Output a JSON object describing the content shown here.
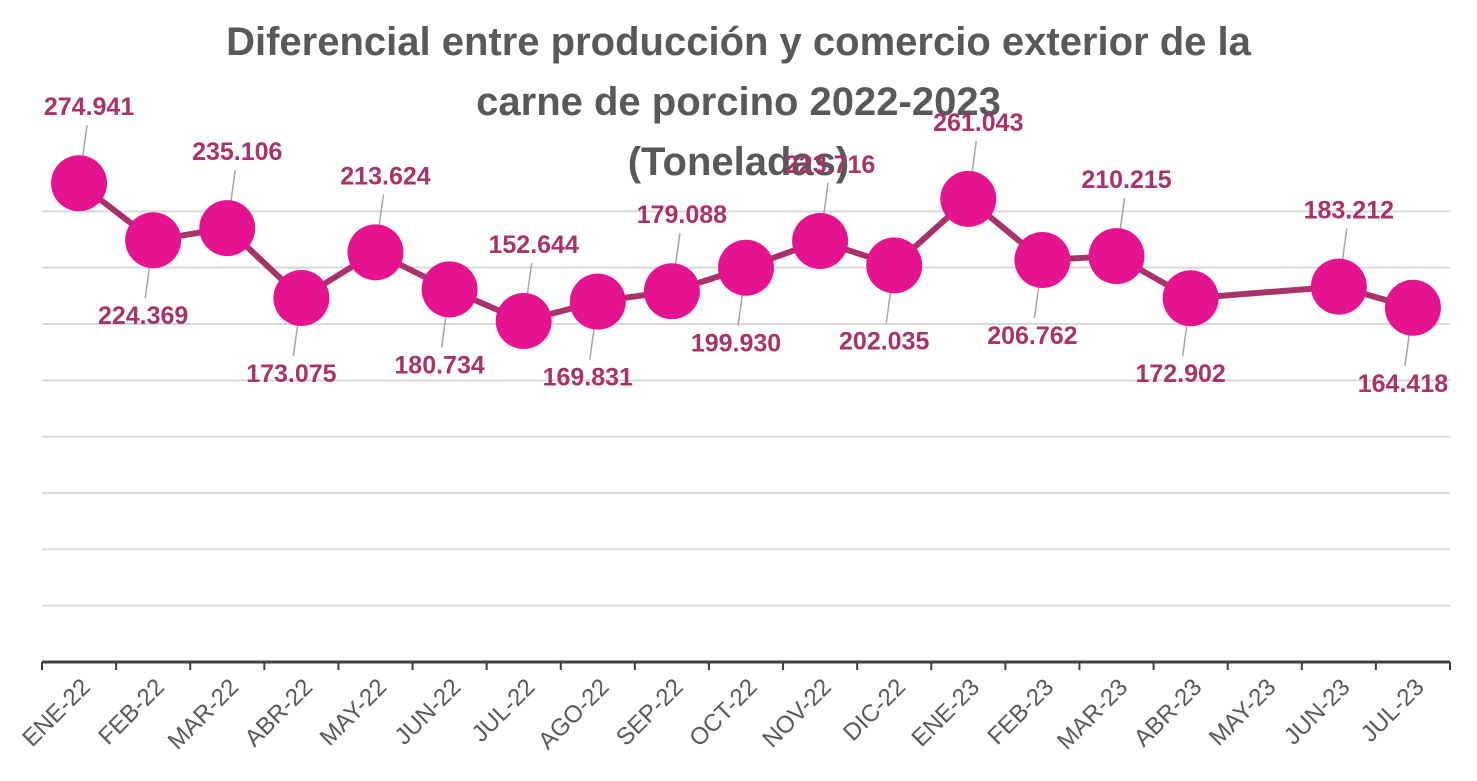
{
  "chart_data": {
    "type": "line",
    "title_lines": [
      "Diferencial entre producción y comercio exterior de la",
      "carne de porcino 2022-2023",
      "(Toneladas)"
    ],
    "categories": [
      "ENE-22",
      "FEB-22",
      "MAR-22",
      "ABR-22",
      "MAY-22",
      "JUN-22",
      "JUL-22",
      "AGO-22",
      "SEP-22",
      "OCT-22",
      "NOV-22",
      "DIC-22",
      "ENE-23",
      "FEB-23",
      "MAR-23",
      "ABR-23",
      "MAY-23",
      "JUN-23",
      "JUL-23"
    ],
    "series": [
      {
        "values": [
          274941,
          224369,
          235106,
          173075,
          213624,
          180734,
          152644,
          169831,
          179088,
          199930,
          223716,
          202035,
          261043,
          206762,
          210215,
          172902,
          null,
          183212,
          164418
        ],
        "labels": [
          "274.941",
          "224.369",
          "235.106",
          "173.075",
          "213.624",
          "180.734",
          "152.644",
          "169.831",
          "179.088",
          "199.930",
          "223.716",
          "202.035",
          "261.043",
          "206.762",
          "210.215",
          "172.902",
          "",
          "183.212",
          "164.418"
        ],
        "connect_gaps": true
      }
    ],
    "ylim": [
      -150000,
      300000
    ],
    "gridlines_y": [
      -100000,
      -50000,
      0,
      50000,
      100000,
      150000,
      200000,
      250000
    ],
    "grid": true,
    "legend": "none",
    "colors": {
      "marker": "#E5138F",
      "line": "#A8326A",
      "label": "#A8326A",
      "text": "#595959",
      "grid": "#D9D9D9",
      "axis": "#404040"
    }
  }
}
